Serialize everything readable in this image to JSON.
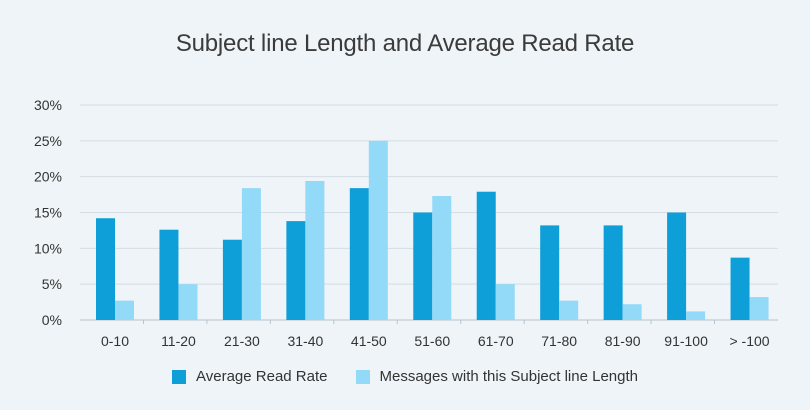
{
  "chart_data": {
    "type": "bar",
    "title": "Subject line Length and Average Read Rate",
    "xlabel": "",
    "ylabel": "",
    "categories": [
      "0-10",
      "11-20",
      "21-30",
      "31-40",
      "41-50",
      "51-60",
      "61-70",
      "71-80",
      "81-90",
      "91-100",
      "> -100"
    ],
    "series": [
      {
        "name": "Average Read Rate",
        "color": "#0f9fd8",
        "values": [
          14.2,
          12.6,
          11.2,
          13.8,
          18.4,
          15.0,
          17.9,
          13.2,
          13.2,
          15.0,
          8.7
        ]
      },
      {
        "name": "Messages with this Subject line Length",
        "color": "#93d9f8",
        "values": [
          2.7,
          5.0,
          18.4,
          19.4,
          25.0,
          17.3,
          5.0,
          2.7,
          2.2,
          1.2,
          3.2
        ]
      }
    ],
    "yticks": [
      "0%",
      "5%",
      "10%",
      "15%",
      "20%",
      "25%",
      "30%"
    ],
    "ylim": [
      0,
      30
    ],
    "grid": true,
    "legend": "bottom"
  }
}
